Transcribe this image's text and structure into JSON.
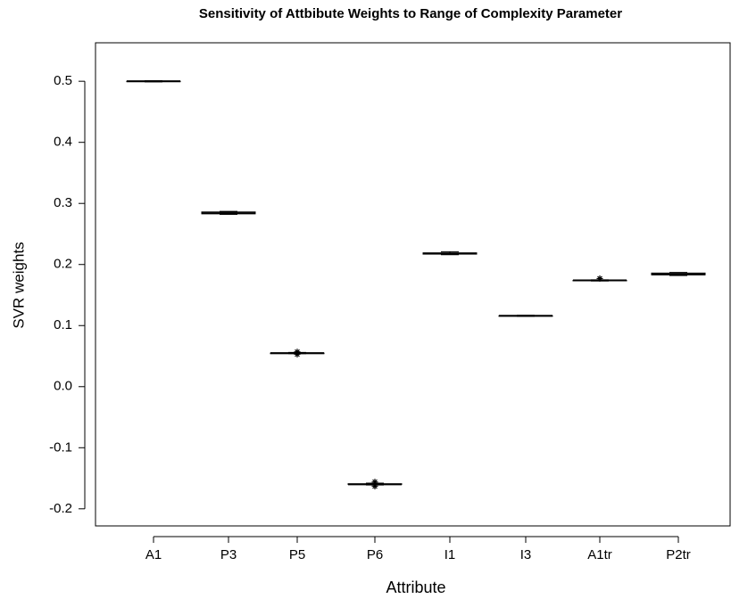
{
  "chart_data": {
    "type": "box",
    "title": "Sensitivity of Attbibute Weights to Range of Complexity Parameter",
    "x_label": "Attribute",
    "y_label": "SVR weights",
    "categories": [
      "A1",
      "P3",
      "P5",
      "P6",
      "I1",
      "I3",
      "A1tr",
      "P2tr"
    ],
    "boxes": [
      {
        "min": 0.499,
        "q1": 0.5,
        "median": 0.5,
        "q3": 0.5,
        "max": 0.501,
        "outliers": []
      },
      {
        "min": 0.282,
        "q1": 0.283,
        "median": 0.284,
        "q3": 0.286,
        "max": 0.287,
        "outliers": []
      },
      {
        "min": 0.054,
        "q1": 0.054,
        "median": 0.055,
        "q3": 0.055,
        "max": 0.056,
        "outliers": [
          0.053,
          0.057
        ]
      },
      {
        "min": -0.161,
        "q1": -0.16,
        "median": -0.16,
        "q3": -0.159,
        "max": -0.158,
        "outliers": [
          -0.163,
          -0.156
        ]
      },
      {
        "min": 0.216,
        "q1": 0.217,
        "median": 0.218,
        "q3": 0.219,
        "max": 0.221,
        "outliers": []
      },
      {
        "min": 0.115,
        "q1": 0.116,
        "median": 0.116,
        "q3": 0.116,
        "max": 0.117,
        "outliers": []
      },
      {
        "min": 0.173,
        "q1": 0.174,
        "median": 0.174,
        "q3": 0.174,
        "max": 0.175,
        "outliers": [
          0.177
        ]
      },
      {
        "min": 0.182,
        "q1": 0.183,
        "median": 0.184,
        "q3": 0.186,
        "max": 0.187,
        "outliers": []
      }
    ],
    "color": "#000000",
    "ylim": [
      -0.228,
      0.563
    ],
    "yticks": [
      -0.2,
      -0.1,
      {
        "value": 0,
        "label": "0.0"
      },
      0.1,
      0.2,
      0.3,
      0.4,
      0.5
    ]
  }
}
